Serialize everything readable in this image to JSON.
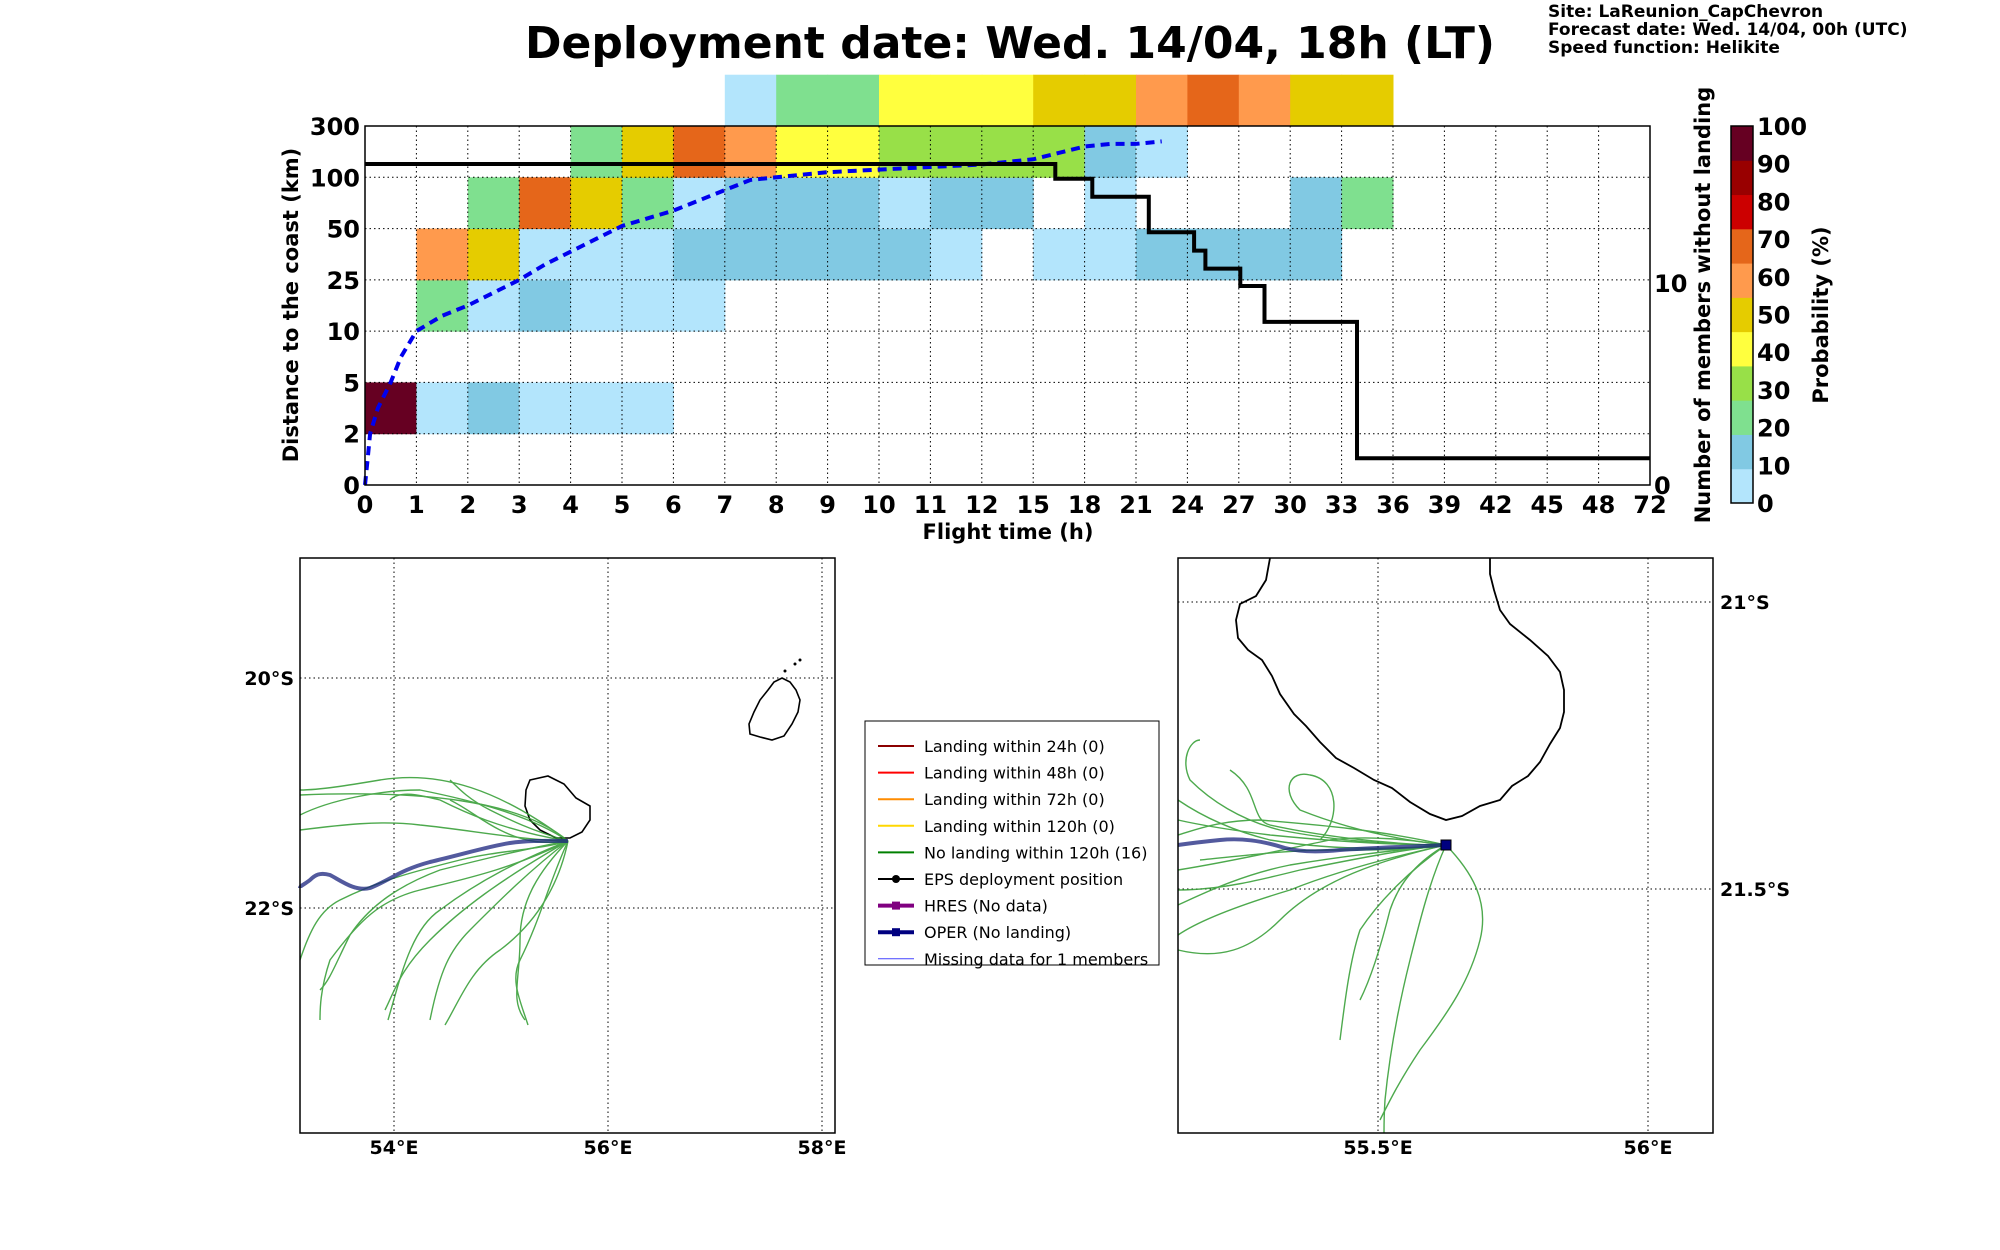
{
  "header": {
    "title": "Deployment date: Wed. 14/04, 18h (LT)",
    "site": "Site: LaReunion_CapChevron",
    "forecast": "Forecast date: Wed. 14/04, 00h (UTC)",
    "speed": "Speed function: Helikite"
  },
  "chart_data": [
    {
      "type": "heatmap",
      "title": "",
      "xlabel": "Flight time (h)",
      "ylabel": "Distance to the coast (km)",
      "y2label": "Number of members without landing",
      "colorbar_label": "Probability (%)",
      "x_ticks": [
        "0",
        "1",
        "2",
        "3",
        "4",
        "5",
        "6",
        "7",
        "8",
        "9",
        "10",
        "11",
        "12",
        "15",
        "18",
        "21",
        "24",
        "27",
        "30",
        "33",
        "36",
        "39",
        "42",
        "45",
        "48",
        "72"
      ],
      "y_ticks": [
        "0",
        "2",
        "5",
        "10",
        "25",
        "50",
        "100",
        "300"
      ],
      "y2_ticks": [
        "0",
        "10"
      ],
      "colorbar_ticks": [
        "0",
        "10",
        "20",
        "30",
        "40",
        "50",
        "60",
        "70",
        "80",
        "90",
        "100"
      ],
      "colorbar_colors": [
        "#b3e5fc",
        "#81c9e3",
        "#7fe08f",
        "#98e048",
        "#ffff3e",
        "#e5cc00",
        "#ff9a4d",
        "#e5661a",
        "#cc0000",
        "#990000",
        "#660022"
      ],
      "grid": true,
      "cells": [
        {
          "x": 0,
          "y": 1,
          "value": 100
        },
        {
          "x": 1,
          "y": 1,
          "value": 5
        },
        {
          "x": 2,
          "y": 1,
          "value": 15
        },
        {
          "x": 3,
          "y": 1,
          "value": 5
        },
        {
          "x": 4,
          "y": 1,
          "value": 5
        },
        {
          "x": 5,
          "y": 1,
          "value": 5
        },
        {
          "x": 1,
          "y": 3,
          "value": 25
        },
        {
          "x": 2,
          "y": 3,
          "value": 5
        },
        {
          "x": 3,
          "y": 3,
          "value": 15
        },
        {
          "x": 4,
          "y": 3,
          "value": 5
        },
        {
          "x": 5,
          "y": 3,
          "value": 5
        },
        {
          "x": 6,
          "y": 3,
          "value": 5
        },
        {
          "x": 1,
          "y": 4,
          "value": 65
        },
        {
          "x": 2,
          "y": 4,
          "value": 55
        },
        {
          "x": 3,
          "y": 4,
          "value": 5
        },
        {
          "x": 4,
          "y": 4,
          "value": 5
        },
        {
          "x": 5,
          "y": 4,
          "value": 5
        },
        {
          "x": 6,
          "y": 4,
          "value": 15
        },
        {
          "x": 7,
          "y": 4,
          "value": 15
        },
        {
          "x": 8,
          "y": 4,
          "value": 15
        },
        {
          "x": 9,
          "y": 4,
          "value": 15
        },
        {
          "x": 10,
          "y": 4,
          "value": 15
        },
        {
          "x": 11,
          "y": 4,
          "value": 5
        },
        {
          "x": 13,
          "y": 4,
          "value": 5
        },
        {
          "x": 14,
          "y": 4,
          "value": 5
        },
        {
          "x": 15,
          "y": 4,
          "value": 15
        },
        {
          "x": 16,
          "y": 4,
          "value": 15
        },
        {
          "x": 17,
          "y": 4,
          "value": 15
        },
        {
          "x": 18,
          "y": 4,
          "value": 15
        },
        {
          "x": 2,
          "y": 5,
          "value": 25
        },
        {
          "x": 3,
          "y": 5,
          "value": 75
        },
        {
          "x": 4,
          "y": 5,
          "value": 55
        },
        {
          "x": 5,
          "y": 5,
          "value": 25
        },
        {
          "x": 6,
          "y": 5,
          "value": 5
        },
        {
          "x": 7,
          "y": 5,
          "value": 15
        },
        {
          "x": 8,
          "y": 5,
          "value": 15
        },
        {
          "x": 9,
          "y": 5,
          "value": 15
        },
        {
          "x": 10,
          "y": 5,
          "value": 5
        },
        {
          "x": 11,
          "y": 5,
          "value": 15
        },
        {
          "x": 12,
          "y": 5,
          "value": 15
        },
        {
          "x": 14,
          "y": 5,
          "value": 5
        },
        {
          "x": 18,
          "y": 5,
          "value": 15
        },
        {
          "x": 19,
          "y": 5,
          "value": 25
        },
        {
          "x": 4,
          "y": 6,
          "value": 25
        },
        {
          "x": 5,
          "y": 6,
          "value": 55
        },
        {
          "x": 6,
          "y": 6,
          "value": 75
        },
        {
          "x": 7,
          "y": 6,
          "value": 65
        },
        {
          "x": 8,
          "y": 6,
          "value": 45
        },
        {
          "x": 9,
          "y": 6,
          "value": 45
        },
        {
          "x": 10,
          "y": 6,
          "value": 35
        },
        {
          "x": 11,
          "y": 6,
          "value": 35
        },
        {
          "x": 12,
          "y": 6,
          "value": 35
        },
        {
          "x": 13,
          "y": 6,
          "value": 35
        },
        {
          "x": 14,
          "y": 6,
          "value": 15
        },
        {
          "x": 15,
          "y": 6,
          "value": 5
        },
        {
          "x": 7,
          "y": 7,
          "value": 5
        },
        {
          "x": 8,
          "y": 7,
          "value": 25
        },
        {
          "x": 9,
          "y": 7,
          "value": 25
        },
        {
          "x": 10,
          "y": 7,
          "value": 45
        },
        {
          "x": 11,
          "y": 7,
          "value": 45
        },
        {
          "x": 12,
          "y": 7,
          "value": 45
        },
        {
          "x": 13,
          "y": 7,
          "value": 55
        },
        {
          "x": 14,
          "y": 7,
          "value": 55
        },
        {
          "x": 15,
          "y": 7,
          "value": 65
        },
        {
          "x": 16,
          "y": 7,
          "value": 75
        },
        {
          "x": 17,
          "y": 7,
          "value": 65
        },
        {
          "x": 18,
          "y": 7,
          "value": 55
        },
        {
          "x": 19,
          "y": 7,
          "value": 55
        }
      ],
      "series": [
        {
          "name": "",
          "style": "dashed-blue",
          "points": [
            [
              0,
              0
            ],
            [
              0.05,
              0.5
            ],
            [
              0.1,
              1
            ],
            [
              0.25,
              1.5
            ],
            [
              0.5,
              2
            ],
            [
              0.7,
              2.5
            ],
            [
              1,
              3
            ],
            [
              1.5,
              3.3
            ],
            [
              2,
              3.5
            ],
            [
              2.5,
              3.75
            ],
            [
              3,
              4
            ],
            [
              3.5,
              4.3
            ],
            [
              4,
              4.55
            ],
            [
              4.5,
              4.8
            ],
            [
              5,
              5.05
            ],
            [
              5.5,
              5.2
            ],
            [
              6,
              5.35
            ],
            [
              6.5,
              5.55
            ],
            [
              7,
              5.75
            ],
            [
              7.5,
              5.95
            ],
            [
              8,
              6.0
            ],
            [
              9,
              6.1
            ],
            [
              10,
              6.15
            ],
            [
              11,
              6.2
            ],
            [
              12,
              6.25
            ],
            [
              13,
              6.35
            ],
            [
              14,
              6.6
            ],
            [
              14.5,
              6.65
            ],
            [
              15,
              6.65
            ],
            [
              15.5,
              6.7
            ]
          ]
        },
        {
          "name": "",
          "style": "step-black",
          "points": [
            [
              0,
              6.26
            ],
            [
              13.43,
              6.26
            ],
            [
              13.43,
              5.97
            ],
            [
              14.15,
              5.97
            ],
            [
              14.15,
              5.62
            ],
            [
              15.25,
              5.62
            ],
            [
              15.25,
              4.93
            ],
            [
              16.13,
              4.93
            ],
            [
              16.13,
              4.57
            ],
            [
              16.35,
              4.57
            ],
            [
              16.35,
              4.22
            ],
            [
              17.03,
              4.22
            ],
            [
              17.03,
              3.88
            ],
            [
              17.5,
              3.88
            ],
            [
              17.5,
              3.18
            ],
            [
              19.3,
              3.18
            ],
            [
              19.3,
              0.52
            ],
            [
              25,
              0.52
            ]
          ]
        }
      ]
    }
  ],
  "map_left": {
    "lon_ticks": [
      "54°E",
      "56°E",
      "58°E"
    ],
    "lat_ticks": [
      "20°S",
      "22°S"
    ]
  },
  "map_right": {
    "lon_ticks": [
      "55.5°E",
      "56°E"
    ],
    "lat_ticks": [
      "21°S",
      "21.5°S"
    ]
  },
  "legend": {
    "items": [
      {
        "label": "Landing within 24h (0)",
        "color": "#8b0000",
        "marker": "none",
        "width": 2
      },
      {
        "label": "Landing within 48h (0)",
        "color": "#ff0000",
        "marker": "none",
        "width": 2
      },
      {
        "label": "Landing within 72h (0)",
        "color": "#ff8c00",
        "marker": "none",
        "width": 2
      },
      {
        "label": "Landing within 120h (0)",
        "color": "#ffd700",
        "marker": "none",
        "width": 2
      },
      {
        "label": "No landing within 120h (16)",
        "color": "#008000",
        "marker": "none",
        "width": 2
      },
      {
        "label": "EPS deployment position",
        "color": "#000000",
        "marker": "circle",
        "width": 2
      },
      {
        "label": "HRES (No data)",
        "color": "#800080",
        "marker": "square",
        "width": 4
      },
      {
        "label": "OPER (No landing)",
        "color": "#000080",
        "marker": "square",
        "width": 4
      },
      {
        "label": "Missing data for 1 members",
        "color": "#4444ff",
        "marker": "none",
        "width": 1
      }
    ]
  }
}
